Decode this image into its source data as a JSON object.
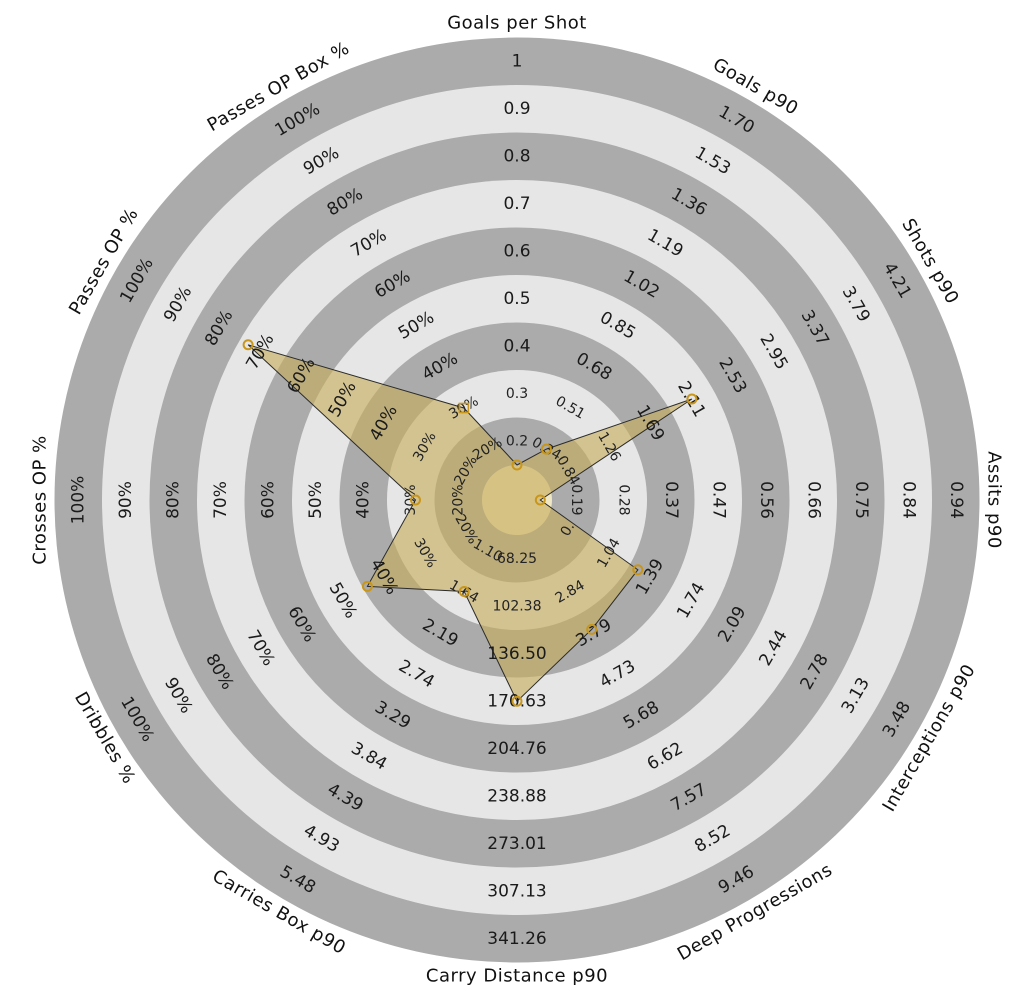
{
  "chart_data": {
    "type": "radar",
    "colors": {
      "ring_dark": "#ababab",
      "ring_light": "#e6e6e6",
      "fill": "#c6ad5c",
      "marker": "#c8961a"
    },
    "parameters": [
      {
        "name": "Goals per Shot",
        "ticks": [
          "0.2",
          "0.3",
          "0.4",
          "0.5",
          "0.6",
          "0.7",
          "0.8",
          "0.9",
          "1"
        ],
        "value": 0.15,
        "marker": "circle"
      },
      {
        "name": "Goals p90",
        "ticks": [
          "0.34",
          "0.51",
          "0.68",
          "0.85",
          "1.02",
          "1.19",
          "1.36",
          "1.53",
          "1.70"
        ],
        "value": 0.34,
        "marker": "circle"
      },
      {
        "name": "Shots p90",
        "ticks": [
          "0.84",
          "1.26",
          "1.69",
          "2.11",
          "2.53",
          "2.95",
          "3.37",
          "3.79",
          "4.21"
        ],
        "value": 2.11,
        "marker": "circle"
      },
      {
        "name": "Assits p90",
        "ticks": [
          "0.19",
          "0.28",
          "0.37",
          "0.47",
          "0.56",
          "0.66",
          "0.75",
          "0.84",
          "0.94"
        ],
        "value": 0.12,
        "marker": "circle"
      },
      {
        "name": "Interceptions p90",
        "ticks": [
          "0.",
          "1.04",
          "1.39",
          "1.74",
          "2.09",
          "2.44",
          "2.78",
          "3.13",
          "3.48"
        ],
        "value": 0.74,
        "marker": "circle"
      },
      {
        "name": "Deep Progressions",
        "ticks": [
          "2.84",
          "3.79",
          "4.73",
          "5.68",
          "6.62",
          "7.57",
          "8.52",
          "9.46"
        ],
        "value": 3.7,
        "marker": "circle"
      },
      {
        "name": "Carry Distance p90",
        "ticks": [
          "68.25",
          "102.38",
          "136.50",
          "170.63",
          "204.76",
          "238.88",
          "273.01",
          "307.13",
          "341.26"
        ],
        "value": 170.63,
        "marker": "circle"
      },
      {
        "name": "Carries Box p90",
        "ticks": [
          "1.10",
          "1.64",
          "2.19",
          "2.74",
          "3.29",
          "3.84",
          "4.39",
          "4.93",
          "5.48"
        ],
        "value": 1.64,
        "marker": "circle"
      },
      {
        "name": "Dribbles %",
        "ticks": [
          "20%",
          "30%",
          "40%",
          "50%",
          "60%",
          "70%",
          "80%",
          "90%",
          "100%"
        ],
        "value": 44,
        "marker": "circle"
      },
      {
        "name": "Crosses OP %",
        "ticks": [
          "20%",
          "30%",
          "40%",
          "50%",
          "60%",
          "70%",
          "80%",
          "90%",
          "100%"
        ],
        "value": 29,
        "marker": "circle"
      },
      {
        "name": "Passes OP %",
        "ticks": [
          "20%",
          "30%",
          "40%",
          "50%",
          "60%",
          "70%",
          "80%",
          "90%",
          "100%"
        ],
        "value": 73,
        "marker": "circle"
      },
      {
        "name": "Passes OP Box %",
        "ticks": [
          "20%",
          "30%",
          "40%",
          "50%",
          "60%",
          "70%",
          "80%",
          "90%",
          "100%"
        ],
        "value": 30,
        "marker": "square"
      }
    ]
  }
}
